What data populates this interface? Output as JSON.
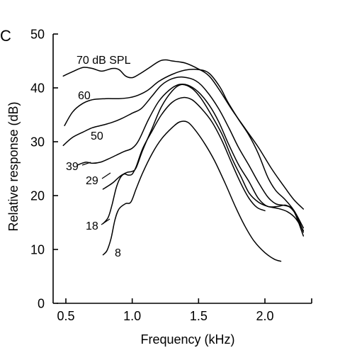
{
  "chart_data": {
    "type": "line",
    "panel_label": "C",
    "xlabel": "Frequency (kHz)",
    "ylabel": "Relative response (dB)",
    "xlim": [
      0.43,
      2.3
    ],
    "ylim": [
      0,
      50
    ],
    "x_ticks": [
      0.5,
      1.0,
      1.5,
      2.0
    ],
    "x_tick_labels": [
      "0.5",
      "1.0",
      "1.5",
      "2.0"
    ],
    "y_ticks": [
      0,
      10,
      20,
      30,
      40,
      50
    ],
    "y_tick_labels": [
      "0",
      "10",
      "20",
      "30",
      "40",
      "50"
    ],
    "grid": false,
    "legend": "none",
    "series": [
      {
        "name": "70 dB SPL",
        "points": [
          [
            0.48,
            42.2
          ],
          [
            0.55,
            43.0
          ],
          [
            0.63,
            43.8
          ],
          [
            0.7,
            43.6
          ],
          [
            0.77,
            43.1
          ],
          [
            0.85,
            43.6
          ],
          [
            0.9,
            43.4
          ],
          [
            0.95,
            42.2
          ],
          [
            1.0,
            41.9
          ],
          [
            1.05,
            42.5
          ],
          [
            1.12,
            43.6
          ],
          [
            1.2,
            44.9
          ],
          [
            1.25,
            45.2
          ],
          [
            1.3,
            45.0
          ],
          [
            1.4,
            44.6
          ],
          [
            1.5,
            43.5
          ],
          [
            1.58,
            42.2
          ],
          [
            1.66,
            39.5
          ],
          [
            1.75,
            36.0
          ],
          [
            1.85,
            32.5
          ],
          [
            1.95,
            29.0
          ],
          [
            2.05,
            25.0
          ],
          [
            2.15,
            21.5
          ],
          [
            2.22,
            19.2
          ],
          [
            2.29,
            17.5
          ]
        ]
      },
      {
        "name": "60",
        "points": [
          [
            0.49,
            33.0
          ],
          [
            0.55,
            35.5
          ],
          [
            0.62,
            37.0
          ],
          [
            0.7,
            37.8
          ],
          [
            0.8,
            38.0
          ],
          [
            0.9,
            38.0
          ],
          [
            0.98,
            38.2
          ],
          [
            1.05,
            38.7
          ],
          [
            1.12,
            39.6
          ],
          [
            1.2,
            41.2
          ],
          [
            1.3,
            42.5
          ],
          [
            1.4,
            43.3
          ],
          [
            1.5,
            43.4
          ],
          [
            1.58,
            42.7
          ],
          [
            1.66,
            40.2
          ],
          [
            1.72,
            37.4
          ],
          [
            1.8,
            34.2
          ],
          [
            1.88,
            31.2
          ],
          [
            1.95,
            27.8
          ],
          [
            2.02,
            23.5
          ],
          [
            2.08,
            21.0
          ],
          [
            2.15,
            19.3
          ],
          [
            2.22,
            17.2
          ],
          [
            2.29,
            14.0
          ]
        ]
      },
      {
        "name": "50",
        "points": [
          [
            0.48,
            29.3
          ],
          [
            0.55,
            30.8
          ],
          [
            0.63,
            31.8
          ],
          [
            0.7,
            32.6
          ],
          [
            0.78,
            33.1
          ],
          [
            0.85,
            33.6
          ],
          [
            0.92,
            34.3
          ],
          [
            1.0,
            35.3
          ],
          [
            1.07,
            36.2
          ],
          [
            1.15,
            38.5
          ],
          [
            1.22,
            40.5
          ],
          [
            1.3,
            41.7
          ],
          [
            1.38,
            42.0
          ],
          [
            1.48,
            41.3
          ],
          [
            1.56,
            39.4
          ],
          [
            1.65,
            36.2
          ],
          [
            1.73,
            32.5
          ],
          [
            1.8,
            29.0
          ],
          [
            1.88,
            25.6
          ],
          [
            1.95,
            22.5
          ],
          [
            2.02,
            19.8
          ],
          [
            2.08,
            18.5
          ],
          [
            2.14,
            18.2
          ],
          [
            2.19,
            17.8
          ],
          [
            2.24,
            16.2
          ],
          [
            2.29,
            13.2
          ]
        ]
      },
      {
        "name": "39",
        "points": [
          [
            0.59,
            25.7
          ],
          [
            0.65,
            26.2
          ],
          [
            0.7,
            26.0
          ],
          [
            0.76,
            26.2
          ],
          [
            0.82,
            26.8
          ],
          [
            0.88,
            27.5
          ],
          [
            0.94,
            28.2
          ],
          [
            1.0,
            28.8
          ],
          [
            1.05,
            30.3
          ],
          [
            1.12,
            34.0
          ],
          [
            1.2,
            37.5
          ],
          [
            1.28,
            39.6
          ],
          [
            1.35,
            40.6
          ],
          [
            1.42,
            40.5
          ],
          [
            1.5,
            39.2
          ],
          [
            1.58,
            36.8
          ],
          [
            1.65,
            33.8
          ],
          [
            1.72,
            29.9
          ],
          [
            1.8,
            25.8
          ],
          [
            1.88,
            22.6
          ],
          [
            1.95,
            19.5
          ],
          [
            2.02,
            18.0
          ],
          [
            2.1,
            18.0
          ],
          [
            2.16,
            18.2
          ],
          [
            2.22,
            17.0
          ],
          [
            2.29,
            12.5
          ]
        ]
      },
      {
        "name": "29",
        "points": [
          [
            0.78,
            21.2
          ],
          [
            0.82,
            21.8
          ],
          [
            0.86,
            22.5
          ],
          [
            0.89,
            23.2
          ],
          [
            0.92,
            23.8
          ],
          [
            0.96,
            24.3
          ],
          [
            1.0,
            24.5
          ],
          [
            1.03,
            25.2
          ],
          [
            1.08,
            28.5
          ],
          [
            1.15,
            32.5
          ],
          [
            1.22,
            36.5
          ],
          [
            1.3,
            39.4
          ],
          [
            1.37,
            40.6
          ],
          [
            1.45,
            39.9
          ],
          [
            1.52,
            38.0
          ],
          [
            1.6,
            34.8
          ],
          [
            1.68,
            31.2
          ],
          [
            1.75,
            27.0
          ],
          [
            1.82,
            23.5
          ],
          [
            1.88,
            20.5
          ],
          [
            1.95,
            18.8
          ],
          [
            2.02,
            18.0
          ],
          [
            2.1,
            17.6
          ],
          [
            2.17,
            17.0
          ],
          [
            2.23,
            15.8
          ],
          [
            2.29,
            13.5
          ]
        ]
      },
      {
        "name": "18",
        "points": [
          [
            0.78,
            14.8
          ],
          [
            0.82,
            16.0
          ],
          [
            0.85,
            18.5
          ],
          [
            0.88,
            21.5
          ],
          [
            0.91,
            23.3
          ],
          [
            0.94,
            24.0
          ],
          [
            0.97,
            23.8
          ],
          [
            1.0,
            24.0
          ],
          [
            1.03,
            25.4
          ],
          [
            1.08,
            28.8
          ],
          [
            1.15,
            32.0
          ],
          [
            1.22,
            35.0
          ],
          [
            1.3,
            37.3
          ],
          [
            1.38,
            38.2
          ],
          [
            1.45,
            37.8
          ],
          [
            1.52,
            36.2
          ],
          [
            1.6,
            33.7
          ],
          [
            1.68,
            30.0
          ],
          [
            1.75,
            26.0
          ],
          [
            1.82,
            22.2
          ],
          [
            1.88,
            19.5
          ],
          [
            1.94,
            17.8
          ],
          [
            2.0,
            17.2
          ]
        ]
      },
      {
        "name": "8",
        "points": [
          [
            0.78,
            9.0
          ],
          [
            0.81,
            9.8
          ],
          [
            0.84,
            12.0
          ],
          [
            0.87,
            15.5
          ],
          [
            0.9,
            17.5
          ],
          [
            0.95,
            18.5
          ],
          [
            0.99,
            18.8
          ],
          [
            1.03,
            21.3
          ],
          [
            1.08,
            24.3
          ],
          [
            1.15,
            27.8
          ],
          [
            1.22,
            30.5
          ],
          [
            1.3,
            32.6
          ],
          [
            1.36,
            33.7
          ],
          [
            1.42,
            33.6
          ],
          [
            1.48,
            32.0
          ],
          [
            1.55,
            29.5
          ],
          [
            1.62,
            26.5
          ],
          [
            1.7,
            22.3
          ],
          [
            1.78,
            17.8
          ],
          [
            1.85,
            14.3
          ],
          [
            1.92,
            11.5
          ],
          [
            2.0,
            9.4
          ],
          [
            2.07,
            8.2
          ],
          [
            2.12,
            7.8
          ]
        ]
      }
    ]
  }
}
